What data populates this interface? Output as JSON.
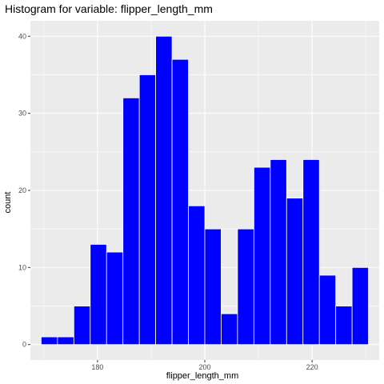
{
  "chart_data": {
    "type": "bar",
    "title": "Histogram for variable: flipper_length_mm",
    "xlabel": "flipper_length_mm",
    "ylabel": "count",
    "bin_width": 3.05,
    "bins": [
      {
        "x_start": 169.5,
        "x_end": 172.55,
        "count": 1
      },
      {
        "x_start": 172.55,
        "x_end": 175.6,
        "count": 1
      },
      {
        "x_start": 175.6,
        "x_end": 178.65,
        "count": 5
      },
      {
        "x_start": 178.65,
        "x_end": 181.7,
        "count": 13
      },
      {
        "x_start": 181.7,
        "x_end": 184.75,
        "count": 12
      },
      {
        "x_start": 184.75,
        "x_end": 187.8,
        "count": 32
      },
      {
        "x_start": 187.8,
        "x_end": 190.85,
        "count": 35
      },
      {
        "x_start": 190.85,
        "x_end": 193.9,
        "count": 40
      },
      {
        "x_start": 193.9,
        "x_end": 196.95,
        "count": 37
      },
      {
        "x_start": 196.95,
        "x_end": 200.0,
        "count": 18
      },
      {
        "x_start": 200.0,
        "x_end": 203.05,
        "count": 15
      },
      {
        "x_start": 203.05,
        "x_end": 206.1,
        "count": 4
      },
      {
        "x_start": 206.1,
        "x_end": 209.15,
        "count": 15
      },
      {
        "x_start": 209.15,
        "x_end": 212.2,
        "count": 23
      },
      {
        "x_start": 212.2,
        "x_end": 215.25,
        "count": 24
      },
      {
        "x_start": 215.25,
        "x_end": 218.3,
        "count": 19
      },
      {
        "x_start": 218.3,
        "x_end": 221.35,
        "count": 24
      },
      {
        "x_start": 221.35,
        "x_end": 224.4,
        "count": 9
      },
      {
        "x_start": 224.4,
        "x_end": 227.45,
        "count": 5
      },
      {
        "x_start": 227.45,
        "x_end": 230.5,
        "count": 10
      }
    ],
    "x_ticks": [
      180,
      200,
      220
    ],
    "y_ticks": [
      0,
      10,
      20,
      30,
      40
    ],
    "xlim": [
      167.5,
      232.5
    ],
    "ylim": [
      -2,
      42
    ],
    "grid": true,
    "bar_color": "#0000ff",
    "bar_outline": "#ffffff",
    "panel_background": "#ebebeb",
    "grid_color": "#ffffff"
  }
}
